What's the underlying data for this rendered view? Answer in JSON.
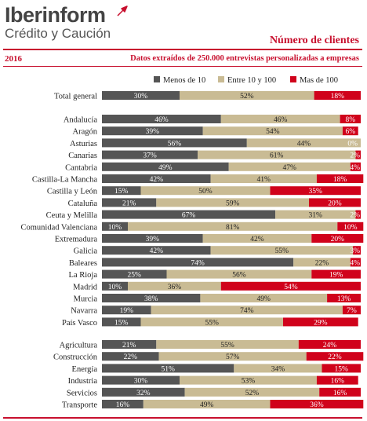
{
  "brand": {
    "name": "Iberinform",
    "tagline": "Crédito y Caución",
    "mark": "arrow-logo-icon"
  },
  "header": {
    "title": "Número de clientes",
    "year": "2016",
    "subtitle": "Datos extraídos de 250.000 entrevistas personalizadas a empresas"
  },
  "colors": {
    "accent": "#c8102e",
    "dark": "#555555",
    "beige": "#c9bb94",
    "red": "#d0021b"
  },
  "chart_data": {
    "type": "bar",
    "orientation": "horizontal",
    "stacked": "percent",
    "legend_position": "top",
    "categories": [
      "Total general",
      "Andalucía",
      "Aragón",
      "Asturias",
      "Canarias",
      "Cantabria",
      "Castilla-La Mancha",
      "Castilla y León",
      "Cataluña",
      "Ceuta y Melilla",
      "Comunidad Valenciana",
      "Extremadura",
      "Galicia",
      "Baleares",
      "La Rioja",
      "Madrid",
      "Murcia",
      "Navarra",
      "País Vasco",
      "Agricultura",
      "Construcción",
      "Energía",
      "Industria",
      "Servicios",
      "Transporte"
    ],
    "groups": [
      1,
      18,
      6
    ],
    "series": [
      {
        "name": "Menos de 10",
        "color": "#555555",
        "label_color": "#ffffff",
        "values": [
          30,
          46,
          39,
          56,
          37,
          49,
          42,
          15,
          21,
          67,
          10,
          39,
          42,
          74,
          25,
          10,
          38,
          19,
          15,
          21,
          22,
          51,
          30,
          32,
          16
        ]
      },
      {
        "name": "Entre 10 y 100",
        "color": "#c9bb94",
        "label_color": "#222222",
        "values": [
          52,
          46,
          54,
          44,
          61,
          47,
          41,
          50,
          59,
          31,
          81,
          42,
          55,
          22,
          56,
          36,
          49,
          74,
          55,
          55,
          57,
          34,
          53,
          52,
          49
        ]
      },
      {
        "name": "Mas de 100",
        "color": "#d0021b",
        "label_color": "#ffffff",
        "values": [
          18,
          8,
          6,
          0,
          2,
          4,
          18,
          35,
          20,
          2,
          10,
          20,
          3,
          4,
          19,
          54,
          13,
          7,
          29,
          24,
          22,
          15,
          16,
          16,
          36
        ]
      }
    ],
    "xlim": [
      0,
      100
    ],
    "unit": "%"
  }
}
